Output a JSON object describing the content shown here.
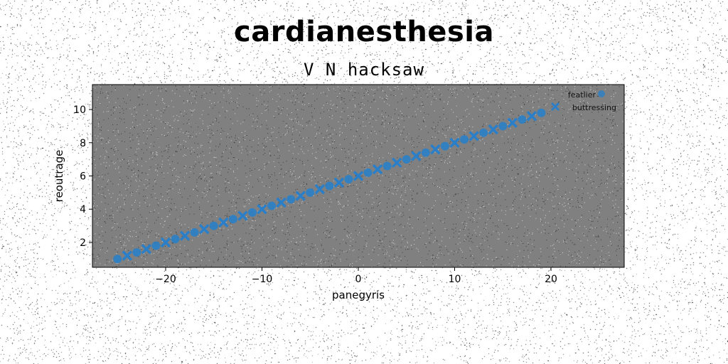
{
  "chart_data": {
    "type": "scatter",
    "title": "cardianesthesia",
    "subtitle": "V N hacksaw",
    "xlabel": "panegyris",
    "ylabel": "reoutrage",
    "xlim": [
      -27.6,
      27.6
    ],
    "ylim": [
      0.5,
      11.5
    ],
    "xticks": [
      -20,
      -10,
      0,
      10,
      20
    ],
    "yticks": [
      2,
      4,
      6,
      8,
      10
    ],
    "grid": false,
    "legend_position": "top-right",
    "plot_background": "#808080",
    "series": [
      {
        "name": "featlier",
        "color": "#2a7fc8",
        "marker": "circle",
        "x": [
          -25.0,
          -23.0,
          -21.0,
          -19.0,
          -17.0,
          -15.0,
          -13.0,
          -11.0,
          -9.0,
          -7.0,
          -5.0,
          -3.0,
          -1.0,
          1.0,
          3.0,
          5.0,
          7.0,
          9.0,
          11.0,
          13.0,
          15.0,
          17.0,
          19.0
        ],
        "y": [
          1.0,
          1.4,
          1.8,
          2.2,
          2.6,
          3.0,
          3.4,
          3.8,
          4.2,
          4.6,
          5.0,
          5.4,
          5.8,
          6.2,
          6.6,
          7.0,
          7.4,
          7.8,
          8.2,
          8.6,
          9.0,
          9.4,
          9.8
        ]
      },
      {
        "name": "buttressing",
        "color": "#2a7fc8",
        "marker": "x",
        "x": [
          -24.0,
          -22.0,
          -20.0,
          -18.0,
          -16.0,
          -14.0,
          -12.0,
          -10.0,
          -8.0,
          -6.0,
          -4.0,
          -2.0,
          0.0,
          2.0,
          4.0,
          6.0,
          8.0,
          10.0,
          12.0,
          14.0,
          16.0,
          18.0
        ],
        "y": [
          1.2,
          1.6,
          2.0,
          2.4,
          2.8,
          3.2,
          3.6,
          4.0,
          4.4,
          4.8,
          5.2,
          5.6,
          6.0,
          6.4,
          6.8,
          7.2,
          7.6,
          8.0,
          8.4,
          8.8,
          9.2,
          9.6
        ]
      }
    ]
  }
}
